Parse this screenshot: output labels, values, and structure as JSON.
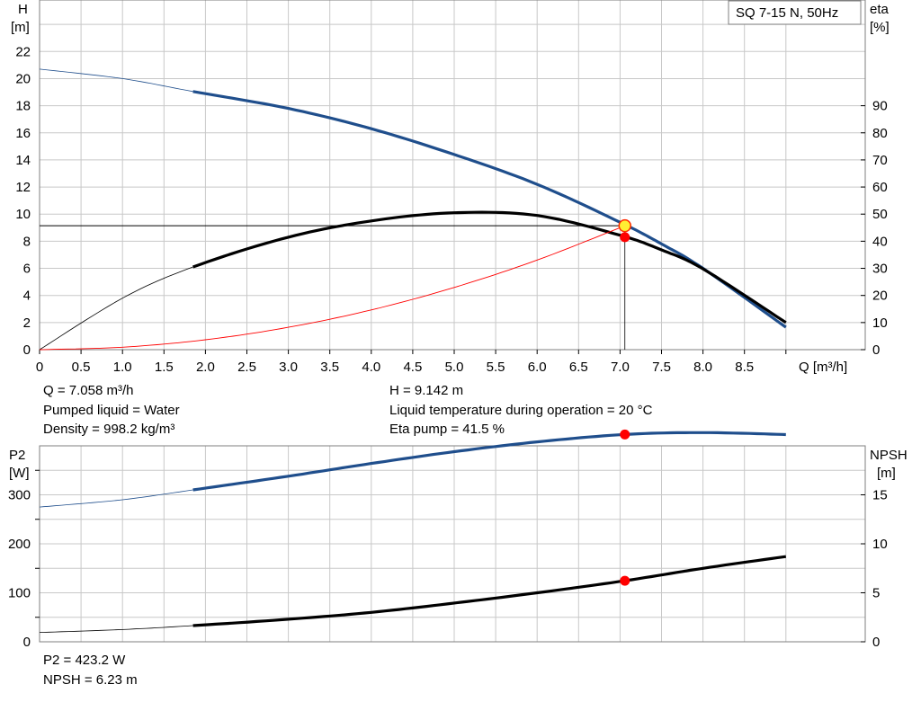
{
  "chart_data": [
    {
      "type": "line",
      "title": "SQ 7-15 N, 50Hz",
      "xlabel": "Q [m³/h]",
      "ylabel_left": "H\n[m]",
      "ylabel_right": "eta\n[%]",
      "xlim": [
        0,
        9.5
      ],
      "ylim_left": [
        0,
        25.8
      ],
      "ylim_right": [
        0,
        129
      ],
      "x_ticks": [
        "0",
        "0.5",
        "1.0",
        "1.5",
        "2.0",
        "2.5",
        "3.0",
        "3.5",
        "4.0",
        "4.5",
        "5.0",
        "5.5",
        "6.0",
        "6.5",
        "7.0",
        "7.5",
        "8.0",
        "8.5"
      ],
      "y_left_ticks": [
        "0",
        "2",
        "4",
        "6",
        "8",
        "10",
        "12",
        "14",
        "16",
        "18",
        "20",
        "22"
      ],
      "y_right_ticks": [
        "0",
        "10",
        "20",
        "30",
        "40",
        "50",
        "60",
        "70",
        "80",
        "90"
      ],
      "grid": true,
      "series": [
        {
          "role": "head",
          "axis": "left",
          "color": "#1f4e8c",
          "thick_from": 1.85,
          "x": [
            0,
            1.0,
            1.85,
            3.0,
            4.0,
            5.0,
            6.0,
            7.0,
            7.5,
            8.0,
            9.0
          ],
          "y": [
            20.7,
            20.0,
            19.05,
            17.8,
            16.3,
            14.4,
            12.2,
            9.4,
            7.8,
            6.0,
            1.65
          ]
        },
        {
          "role": "efficiency",
          "axis": "right",
          "color": "#000000",
          "thick_from": 1.85,
          "x": [
            0,
            1.0,
            1.85,
            3.0,
            4.0,
            5.0,
            6.0,
            7.0,
            7.5,
            8.0,
            9.0
          ],
          "y": [
            0,
            19,
            30.5,
            41.5,
            47.5,
            50.5,
            49.5,
            42.2,
            36.8,
            29.8,
            10
          ]
        },
        {
          "role": "system",
          "axis": "left",
          "color": "#ff0000",
          "thick_from": null,
          "x": [
            0,
            1.0,
            2.0,
            3.0,
            4.0,
            5.0,
            6.0,
            7.058
          ],
          "y": [
            0,
            0.18,
            0.73,
            1.65,
            2.93,
            4.59,
            6.61,
            9.142
          ]
        }
      ],
      "operating_point": {
        "q": 7.058,
        "h": 9.142,
        "eta": 41.5
      }
    },
    {
      "type": "line",
      "ylabel_left": "P2\n[W]",
      "ylabel_right": "NPSH\n[m]",
      "xlim": [
        0,
        9.5
      ],
      "ylim_left": [
        0,
        400
      ],
      "ylim_right": [
        0,
        20
      ],
      "y_left_ticks": [
        "0",
        "100",
        "200",
        "300"
      ],
      "y_right_ticks": [
        "0",
        "5",
        "10",
        "15"
      ],
      "grid": true,
      "series": [
        {
          "role": "power",
          "axis": "left",
          "color": "#1f4e8c",
          "thick_from": 1.85,
          "x": [
            0,
            1.0,
            1.85,
            3.0,
            4.0,
            5.0,
            6.0,
            7.058,
            8.0,
            9.0
          ],
          "y": [
            275,
            290,
            310,
            338,
            364,
            388,
            408,
            423.2,
            427,
            423
          ]
        },
        {
          "role": "npsh",
          "axis": "right",
          "color": "#000000",
          "thick_from": 1.85,
          "x": [
            0,
            1.0,
            1.85,
            3.0,
            4.0,
            5.0,
            6.0,
            7.058,
            8.0,
            9.0
          ],
          "y": [
            0.95,
            1.25,
            1.65,
            2.3,
            3.0,
            3.95,
            5.0,
            6.23,
            7.5,
            8.7
          ]
        }
      ],
      "operating_point": {
        "q": 7.058,
        "p2": 423.2,
        "npsh": 6.23
      }
    }
  ],
  "info": {
    "q": "Q = 7.058 m³/h",
    "liquid": "Pumped liquid = Water",
    "density": "Density = 998.2 kg/m³",
    "h": "H = 9.142 m",
    "temp": "Liquid temperature during operation = 20 °C",
    "eta": "Eta pump = 41.5 %",
    "p2": "P2 = 423.2 W",
    "npsh": "NPSH = 6.23 m"
  },
  "colors": {
    "blue": "#1f4e8c",
    "black": "#000000",
    "red": "#ff0000",
    "marker_yellow": "#ffee33",
    "marker_red": "#ff0000",
    "grid": "#c8c8c8"
  }
}
